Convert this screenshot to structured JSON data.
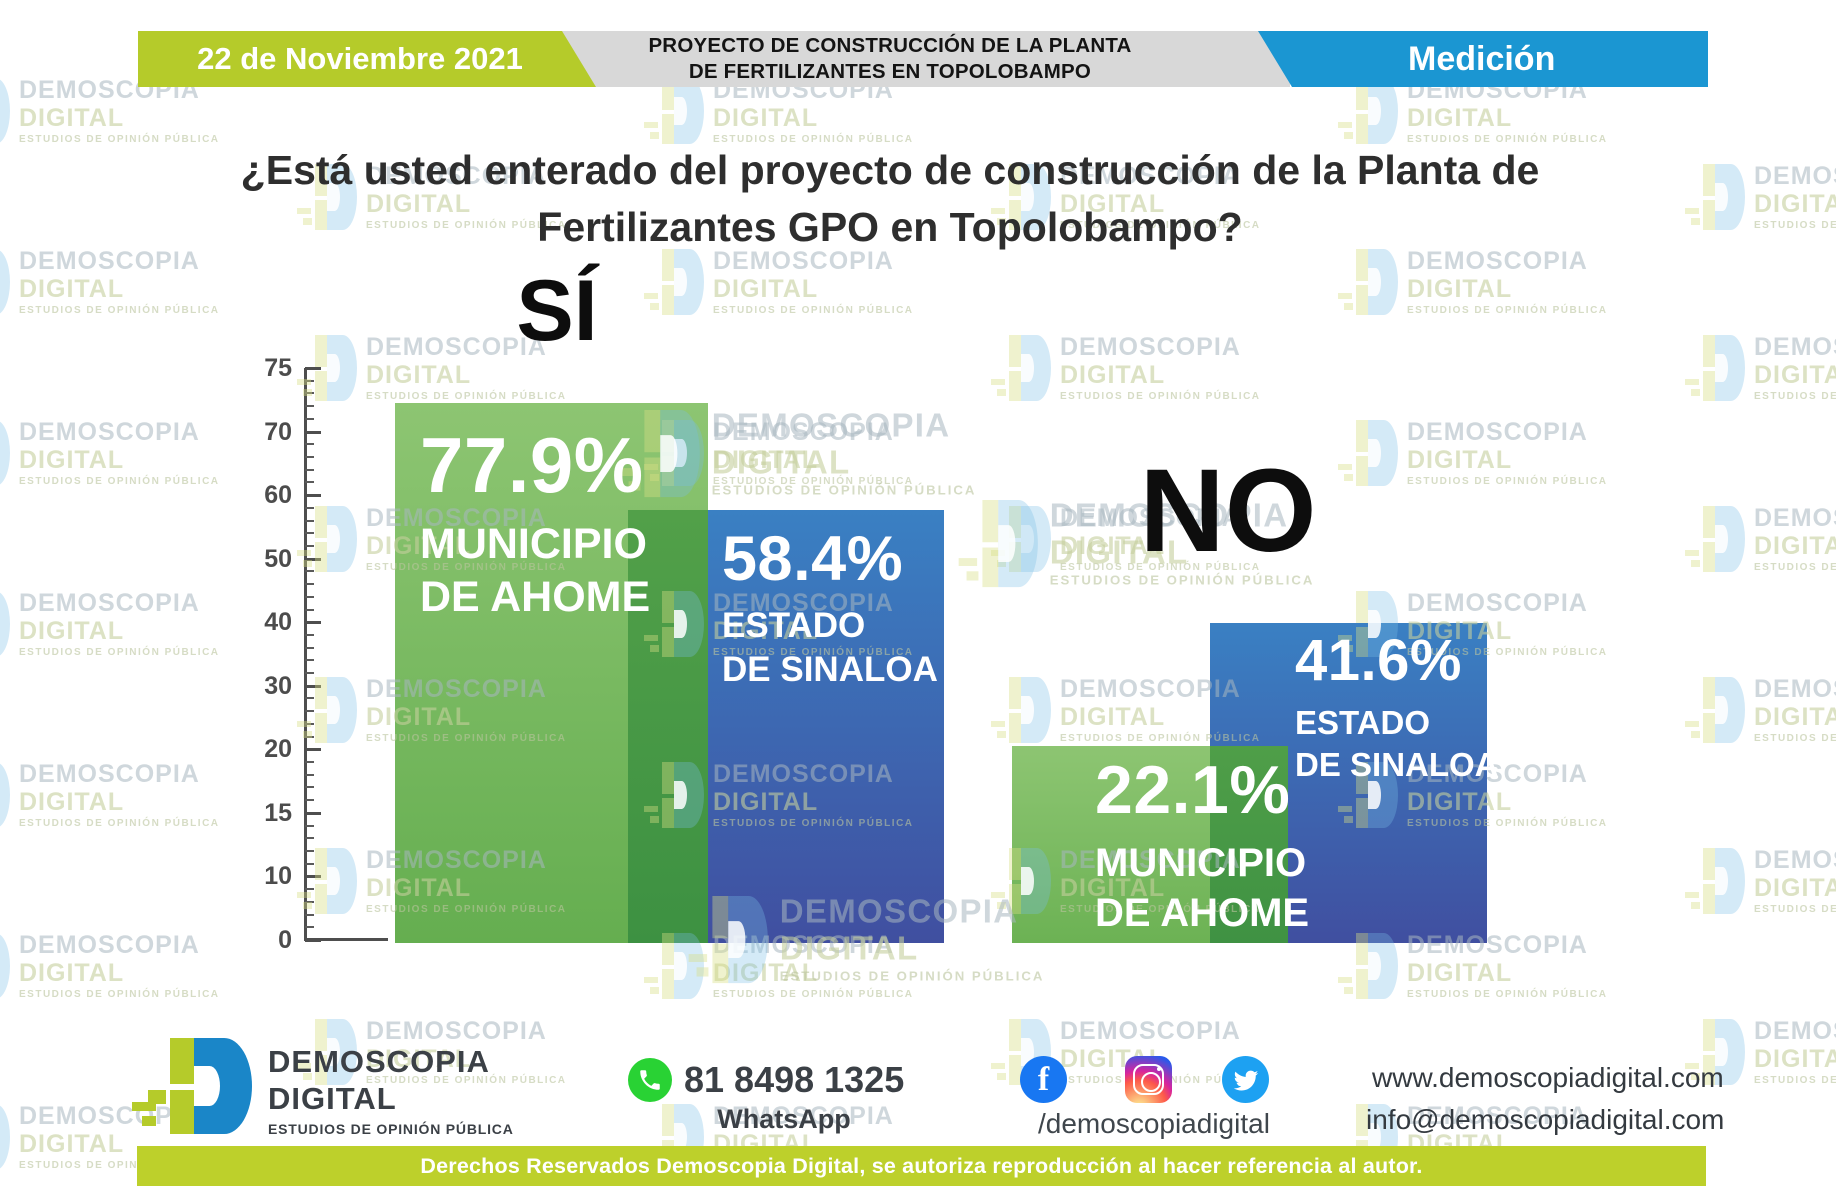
{
  "header": {
    "date": "22 de Noviembre 2021",
    "project_line1": "PROYECTO DE CONSTRUCCIÓN DE LA PLANTA",
    "project_line2": "DE FERTILIZANTES EN TOPOLOBAMPO",
    "badge": "Medición"
  },
  "title": {
    "line1": "¿Está usted enterado del proyecto de construcción de la Planta de",
    "line2": "Fertilizantes GPO en Topolobampo?"
  },
  "chart_data": {
    "type": "bar",
    "title": "¿Está usted enterado del proyecto de construcción de la Planta de Fertilizantes GPO en Topolobampo?",
    "categories": [
      "SÍ",
      "NO"
    ],
    "series": [
      {
        "name": "MUNICIPIO DE AHOME",
        "color": "#6fb557",
        "values": [
          77.9,
          22.1
        ]
      },
      {
        "name": "ESTADO DE SINALOA",
        "color": "#3c66ad",
        "values": [
          58.4,
          41.6
        ]
      }
    ],
    "groups": [
      {
        "category": "SÍ",
        "bars": [
          {
            "series": "MUNICIPIO DE AHOME",
            "value": 77.9,
            "value_label": "77.9%",
            "region_line1": "MUNICIPIO",
            "region_line2": "DE AHOME",
            "color": "green"
          },
          {
            "series": "ESTADO DE SINALOA",
            "value": 58.4,
            "value_label": "58.4%",
            "region_line1": "ESTADO",
            "region_line2": "DE SINALOA",
            "color": "blue"
          }
        ]
      },
      {
        "category": "NO",
        "bars": [
          {
            "series": "MUNICIPIO DE AHOME",
            "value": 22.1,
            "value_label": "22.1%",
            "region_line1": "MUNICIPIO",
            "region_line2": "DE AHOME",
            "color": "green"
          },
          {
            "series": "ESTADO DE SINALOA",
            "value": 41.6,
            "value_label": "41.6%",
            "region_line1": "ESTADO",
            "region_line2": "DE SINALOA",
            "color": "blue"
          }
        ]
      }
    ],
    "y_axis": {
      "ticks": [
        "75",
        "70",
        "60",
        "50",
        "40",
        "30",
        "20",
        "15",
        "10",
        "0"
      ],
      "minor_ticks_per_interval": 4
    },
    "ylim": [
      0,
      75
    ],
    "grid": false,
    "legend_position": "labels-inside-bars"
  },
  "watermark": {
    "line1": "DEMOSCOPIA",
    "line2": "DIGITAL",
    "line3": "ESTUDIOS DE OPINIÓN PÚBLICA"
  },
  "footer": {
    "brand_line1": "DEMOSCOPIA",
    "brand_line2": "DIGITAL",
    "brand_line3": "ESTUDIOS DE OPINIÓN PÚBLICA",
    "whatsapp_number": "81 8498 1325",
    "whatsapp_label": "WhatsApp",
    "social_handle": "/demoscopiadigital",
    "website": "www.demoscopiadigital.com",
    "email": "info@demoscopiadigital.com",
    "social_icons": [
      "facebook-icon",
      "instagram-icon",
      "twitter-icon"
    ],
    "facebook_glyph": "f"
  },
  "legal": "Derechos Reservados Demoscopia Digital, se autoriza reproducción al hacer referencia al autor.",
  "colors": {
    "lime": "#b5cb2a",
    "legal_lime": "#bdd02b",
    "badge_blue": "#1b96d2",
    "header_gray": "#d8d8d8",
    "bar_green_top": "#8dc572",
    "bar_green_bottom": "#65ae50",
    "bar_overlap_green": "#479a46",
    "bar_blue_top": "#3a80c3",
    "bar_blue_bottom": "#404fa0",
    "whatsapp_green": "#29d234",
    "facebook_blue": "#1877f2",
    "twitter_blue": "#1da1f2"
  }
}
